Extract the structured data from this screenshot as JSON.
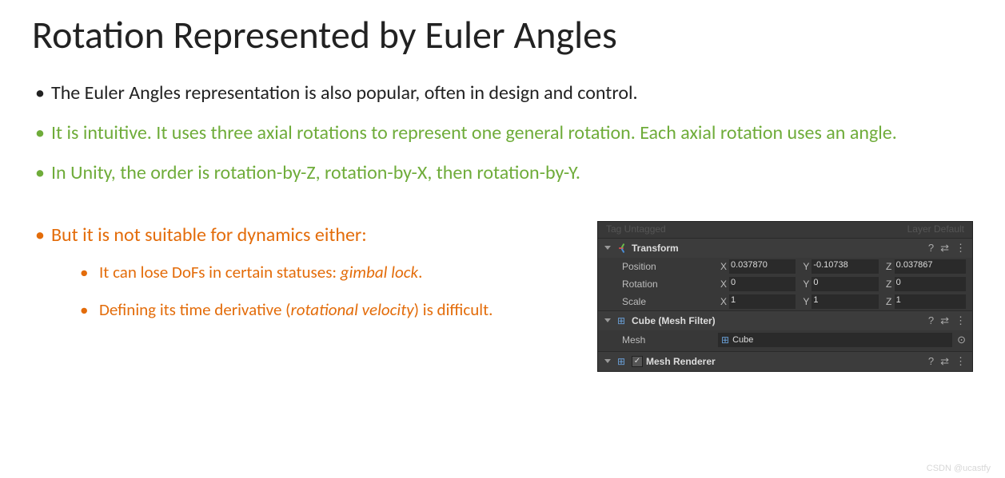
{
  "title": "Rotation Represented by Euler Angles",
  "bullets": {
    "b1": "The Euler Angles representation is also popular, often in design and control.",
    "b2": "It is intuitive.  It uses three axial rotations to represent one general rotation.  Each axial rotation uses an angle.",
    "b3": "In Unity, the order is rotation-by-Z, rotation-by-X, then rotation-by-Y.",
    "b4": "But it is not suitable for dynamics either:",
    "b4a_pre": "It can lose DoFs in certain statuses: ",
    "b4a_em": "gimbal lock",
    "b4a_post": ".",
    "b4b_pre": "Defining its time derivative (",
    "b4b_em": "rotational velocity",
    "b4b_post": ") is difficult."
  },
  "colors": {
    "black": "#222222",
    "green": "#6fac3a",
    "orange": "#e36c0a"
  },
  "inspector": {
    "topLeft": "Tag  Untagged",
    "topRight": "Layer  Default",
    "transform": {
      "name": "Transform",
      "position": {
        "label": "Position",
        "x": "0.037870",
        "y": "-0.10738",
        "z": "0.037867"
      },
      "rotation": {
        "label": "Rotation",
        "x": "0",
        "y": "0",
        "z": "0"
      },
      "scale": {
        "label": "Scale",
        "x": "1",
        "y": "1",
        "z": "1"
      },
      "axis": {
        "x": "X",
        "y": "Y",
        "z": "Z"
      }
    },
    "meshFilter": {
      "name": "Cube (Mesh Filter)",
      "meshLabel": "Mesh",
      "meshValue": "Cube"
    },
    "meshRenderer": {
      "name": "Mesh Renderer"
    },
    "icons": {
      "help": "?",
      "preset": "⇄",
      "menu": "⋮",
      "target": "⊙",
      "check": "✓",
      "grid": "⊞"
    }
  },
  "watermark": "CSDN @ucastfy"
}
